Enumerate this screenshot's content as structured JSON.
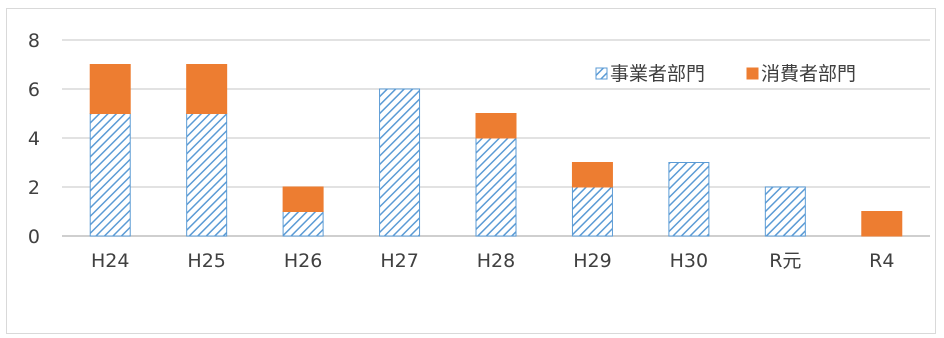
{
  "chart_data": {
    "type": "bar",
    "stacked": true,
    "categories": [
      "H24",
      "H25",
      "H26",
      "H27",
      "H28",
      "H29",
      "H30",
      "R元",
      "R4"
    ],
    "series": [
      {
        "name": "事業者部門",
        "values": [
          5,
          5,
          1,
          6,
          4,
          2,
          3,
          2,
          0
        ],
        "color": "#5b9bd5",
        "pattern": "diagonal-hatch"
      },
      {
        "name": "消費者部門",
        "values": [
          2,
          2,
          1,
          0,
          1,
          1,
          0,
          0,
          1
        ],
        "color": "#ed7d31",
        "pattern": "solid"
      }
    ],
    "yticks": [
      "0",
      "2",
      "4",
      "6",
      "8"
    ],
    "ylim": [
      0,
      8
    ],
    "grid": true,
    "legend_position": "top-right"
  }
}
